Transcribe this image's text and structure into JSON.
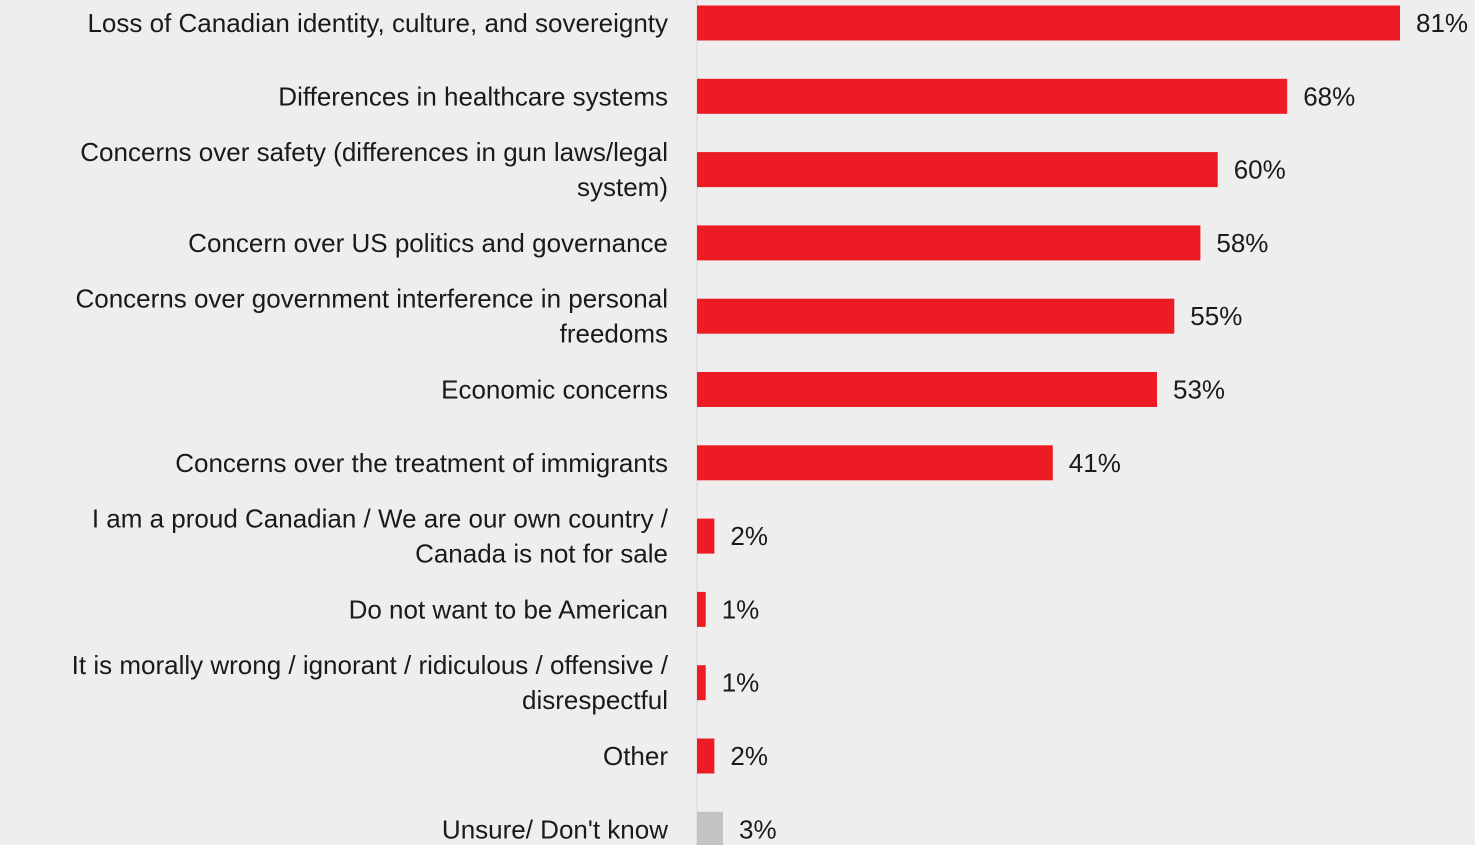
{
  "chart_data": {
    "type": "bar",
    "orientation": "horizontal",
    "categories": [
      "Loss of Canadian identity, culture, and sovereignty",
      "Differences in healthcare systems",
      "Concerns over safety (differences in gun laws/legal system)",
      "Concern over US politics and governance",
      "Concerns over government interference in personal freedoms",
      "Economic concerns",
      "Concerns over the treatment of immigrants",
      "I am a proud Canadian / We are our own country / Canada is not for sale",
      "Do not want to be American",
      "It is morally wrong / ignorant / ridiculous / offensive / disrespectful",
      "Other",
      "Unsure/ Don't know"
    ],
    "category_lines": [
      [
        "Loss of Canadian identity, culture, and sovereignty"
      ],
      [
        "Differences in healthcare systems"
      ],
      [
        "Concerns over safety (differences in gun laws/legal",
        "system)"
      ],
      [
        "Concern over US politics and governance"
      ],
      [
        "Concerns over government interference in personal",
        "freedoms"
      ],
      [
        "Economic concerns"
      ],
      [
        "Concerns over the treatment of immigrants"
      ],
      [
        "I am a proud Canadian / We are our own country /",
        "Canada is not for sale"
      ],
      [
        "Do not want to be American"
      ],
      [
        "It is morally wrong / ignorant / ridiculous / offensive /",
        "disrespectful"
      ],
      [
        "Other"
      ],
      [
        "Unsure/ Don't know"
      ]
    ],
    "values": [
      81,
      68,
      60,
      58,
      55,
      53,
      41,
      2,
      1,
      1,
      2,
      3
    ],
    "value_labels": [
      "81%",
      "68%",
      "60%",
      "58%",
      "55%",
      "53%",
      "41%",
      "2%",
      "1%",
      "1%",
      "2%",
      "3%"
    ],
    "bar_colors": [
      "#ed1c24",
      "#ed1c24",
      "#ed1c24",
      "#ed1c24",
      "#ed1c24",
      "#ed1c24",
      "#ed1c24",
      "#ed1c24",
      "#ed1c24",
      "#ed1c24",
      "#ed1c24",
      "#c3c3c3"
    ],
    "xlim": [
      0,
      81
    ],
    "unit": "%",
    "grid": false,
    "legend": "none",
    "title": "",
    "xlabel": "",
    "ylabel": ""
  }
}
